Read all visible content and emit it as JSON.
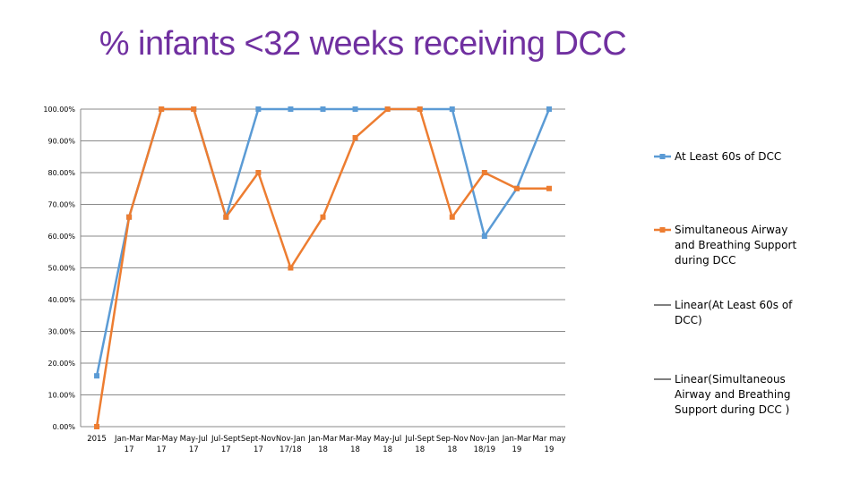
{
  "chart_data": {
    "type": "line",
    "title": "% infants <32 weeks receiving DCC",
    "categories": [
      [
        "2015"
      ],
      [
        "Jan-Mar",
        "17"
      ],
      [
        "Mar-May",
        "17"
      ],
      [
        "May-Jul",
        "17"
      ],
      [
        "Jul-Sept",
        "17"
      ],
      [
        "Sept-Nov",
        "17"
      ],
      [
        "Nov-Jan",
        "17/18"
      ],
      [
        "Jan-Mar",
        "18"
      ],
      [
        "Mar-May",
        "18"
      ],
      [
        "May-Jul",
        "18"
      ],
      [
        "Jul-Sept",
        "18"
      ],
      [
        "Sep-Nov",
        "18"
      ],
      [
        "Nov-Jan",
        "18/19"
      ],
      [
        "Jan-Mar",
        "19"
      ],
      [
        "Mar may",
        "19"
      ]
    ],
    "ylim": [
      0,
      1
    ],
    "yticks": [
      "0.00%",
      "10.00%",
      "20.00%",
      "30.00%",
      "40.00%",
      "50.00%",
      "60.00%",
      "70.00%",
      "80.00%",
      "90.00%",
      "100.00%"
    ],
    "grid": true,
    "legend_position": "right",
    "series": [
      {
        "name": "At Least 60s of DCC",
        "color": "#5b9bd5",
        "marker": "square",
        "values": [
          0.16,
          0.66,
          1.0,
          1.0,
          0.66,
          1.0,
          1.0,
          1.0,
          1.0,
          1.0,
          1.0,
          1.0,
          0.6,
          0.75,
          1.0
        ]
      },
      {
        "name": "Simultaneous Airway and Breathing Support during DCC",
        "color": "#ed7d31",
        "marker": "square",
        "values": [
          0.0,
          0.66,
          1.0,
          1.0,
          0.66,
          0.8,
          0.5,
          0.66,
          0.91,
          1.0,
          1.0,
          0.66,
          0.8,
          0.75,
          0.75
        ]
      }
    ],
    "legend": [
      {
        "lines": [
          "At Least 60s of DCC"
        ],
        "color": "#5b9bd5",
        "marker": true
      },
      {
        "lines": [
          "Simultaneous Airway",
          "and Breathing Support",
          "during DCC"
        ],
        "color": "#ed7d31",
        "marker": true
      },
      {
        "lines": [
          "Linear(At Least 60s of",
          "DCC)"
        ],
        "color": "#000000",
        "marker": false
      },
      {
        "lines": [
          "Linear(Simultaneous",
          "Airway and Breathing",
          "Support during DCC )"
        ],
        "color": "#000000",
        "marker": false
      }
    ]
  }
}
